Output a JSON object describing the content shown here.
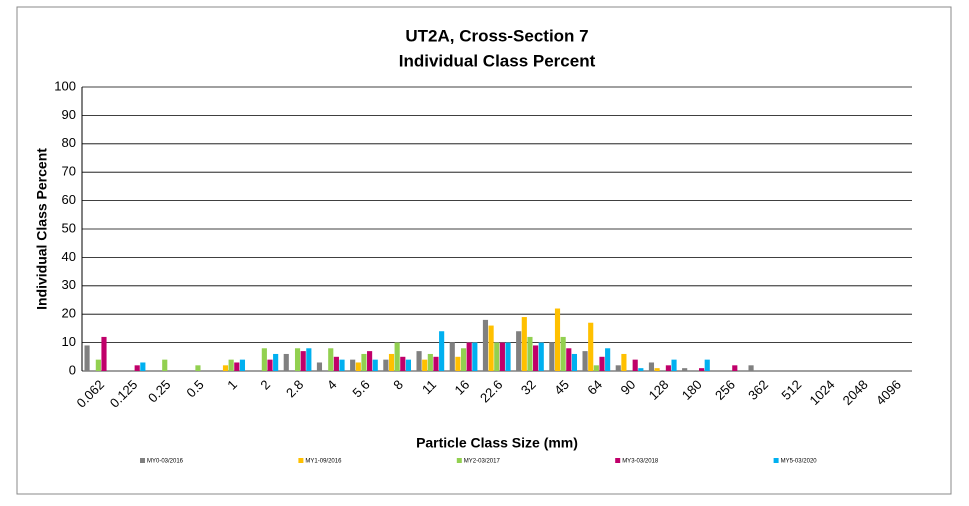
{
  "chart_data": {
    "type": "bar",
    "title": [
      "UT2A, Cross-Section 7",
      "Individual Class Percent"
    ],
    "x_label": "Particle Class Size (mm)",
    "y_label": "Individual Class Percent",
    "categories": [
      "0.062",
      "0.125",
      "0.25",
      "0.5",
      "1",
      "2",
      "2.8",
      "4",
      "5.6",
      "8",
      "11",
      "16",
      "22.6",
      "32",
      "45",
      "64",
      "90",
      "128",
      "180",
      "256",
      "362",
      "512",
      "1024",
      "2048",
      "4096"
    ],
    "series": [
      {
        "name": "MY0-03/2016",
        "color": "#808080",
        "values": [
          9,
          0,
          0,
          0,
          0,
          0,
          6,
          3,
          4,
          4,
          7,
          10,
          18,
          14,
          10,
          7,
          2,
          3,
          1,
          0,
          2,
          0,
          0,
          0,
          0
        ]
      },
      {
        "name": "MY1-09/2016",
        "color": "#ffc000",
        "values": [
          0,
          0,
          0,
          0,
          2,
          0,
          0,
          0,
          3,
          6,
          4,
          5,
          16,
          19,
          22,
          17,
          6,
          1,
          0,
          0,
          0,
          0,
          0,
          0,
          0
        ]
      },
      {
        "name": "MY2-03/2017",
        "color": "#92d050",
        "values": [
          4,
          0,
          4,
          2,
          4,
          8,
          8,
          8,
          6,
          10,
          6,
          8,
          10,
          12,
          12,
          2,
          0,
          0,
          0,
          0,
          0,
          0,
          0,
          0,
          0
        ]
      },
      {
        "name": "MY3-03/2018",
        "color": "#c0006a",
        "values": [
          12,
          2,
          0,
          0,
          3,
          4,
          7,
          5,
          7,
          5,
          5,
          10,
          10,
          9,
          8,
          5,
          4,
          2,
          1,
          2,
          0,
          0,
          0,
          0,
          0
        ]
      },
      {
        "name": "MY5-03/2020",
        "color": "#00b0f0",
        "values": [
          0,
          3,
          0,
          0,
          4,
          6,
          8,
          4,
          4,
          4,
          14,
          10,
          10,
          10,
          6,
          8,
          1,
          4,
          4,
          0,
          0,
          0,
          0,
          0,
          0
        ]
      }
    ],
    "ylim": [
      0,
      100
    ],
    "yticks": [
      0,
      10,
      20,
      30,
      40,
      50,
      60,
      70,
      80,
      90,
      100
    ],
    "grid": true,
    "legend": "bottom"
  }
}
